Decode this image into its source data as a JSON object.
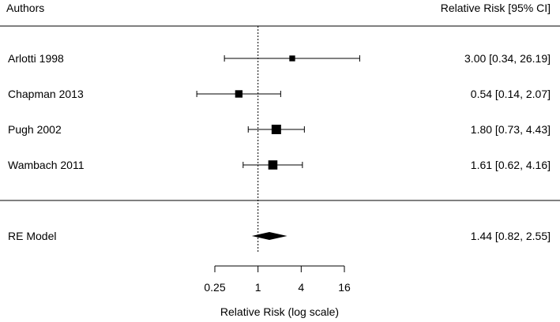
{
  "chart_data": {
    "type": "forest",
    "header": {
      "left": "Authors",
      "right": "Relative Risk [95% CI]"
    },
    "studies": [
      {
        "label": "Arlotti 1998",
        "estimate": 3.0,
        "ci_lower": 0.34,
        "ci_upper": 26.19,
        "text": "3.00 [0.34, 26.19]"
      },
      {
        "label": "Chapman 2013",
        "estimate": 0.54,
        "ci_lower": 0.14,
        "ci_upper": 2.07,
        "text": "0.54 [0.14,  2.07]"
      },
      {
        "label": "Pugh 2002",
        "estimate": 1.8,
        "ci_lower": 0.73,
        "ci_upper": 4.43,
        "text": "1.80 [0.73,  4.43]"
      },
      {
        "label": "Wambach 2011",
        "estimate": 1.61,
        "ci_lower": 0.62,
        "ci_upper": 4.16,
        "text": "1.61 [0.62,  4.16]"
      }
    ],
    "summary": {
      "label": "RE Model",
      "estimate": 1.44,
      "ci_lower": 0.82,
      "ci_upper": 2.55,
      "text": "1.44 [0.82,  2.55]"
    },
    "x_axis": {
      "scale": "log",
      "label": "Relative Risk (log scale)",
      "ticks": [
        0.25,
        1,
        4,
        16
      ],
      "tick_labels": [
        "0.25",
        "1",
        "4",
        "16"
      ],
      "range": [
        0.25,
        16
      ]
    },
    "reference_line": 1
  }
}
